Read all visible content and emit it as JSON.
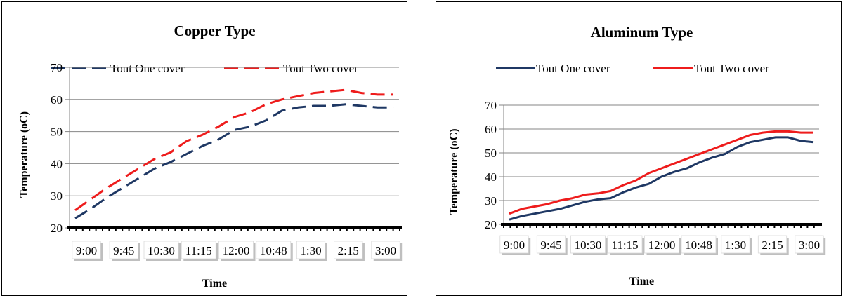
{
  "chart_data": [
    {
      "type": "line",
      "title": "Copper Type",
      "xlabel": "Time",
      "ylabel": "Temperature (oC)",
      "ylim": [
        20,
        70
      ],
      "yticks": [
        20,
        30,
        40,
        50,
        60,
        70
      ],
      "x_tick_labels": [
        "9:00",
        "9:45",
        "10:30",
        "11:15",
        "12:00",
        "10:48",
        "1:30",
        "2:15",
        "3:00"
      ],
      "grid": true,
      "legend_position": "top",
      "series": [
        {
          "name": "Tout One cover",
          "color": "#1f3864",
          "dash": "dashed",
          "values": [
            23,
            26,
            29.5,
            32.5,
            35.5,
            38.5,
            40.5,
            43,
            45.5,
            47.5,
            50.5,
            51.5,
            53.5,
            56.5,
            57.5,
            58,
            58,
            58.5,
            58,
            57.5,
            57.5
          ]
        },
        {
          "name": "Tout Two cover",
          "color": "#ee1c1c",
          "dash": "dashed",
          "values": [
            25.5,
            29,
            32.5,
            35.5,
            38.5,
            41.5,
            43.5,
            47,
            49,
            51.5,
            54.5,
            56,
            58.5,
            60,
            61,
            62,
            62.5,
            63,
            62,
            61.5,
            61.5
          ]
        }
      ]
    },
    {
      "type": "line",
      "title": "Aluminum Type",
      "xlabel": "Time",
      "ylabel": "Temperature (oC)",
      "ylim": [
        20,
        70
      ],
      "yticks": [
        20,
        30,
        40,
        50,
        60,
        70
      ],
      "x_tick_labels": [
        "9:00",
        "9:45",
        "10:30",
        "11:15",
        "12:00",
        "10:48",
        "1:30",
        "2:15",
        "3:00"
      ],
      "grid": true,
      "legend_position": "top",
      "series": [
        {
          "name": "Tout One cover",
          "color": "#1f3864",
          "dash": "solid",
          "values": [
            22,
            23.5,
            24.5,
            25.5,
            26.5,
            28,
            29.5,
            30.5,
            31,
            33.5,
            35.5,
            37,
            40,
            42,
            43.5,
            46,
            48,
            49.5,
            52.5,
            54.5,
            55.5,
            56.5,
            56.5,
            55,
            54.5
          ]
        },
        {
          "name": "Tout Two cover",
          "color": "#ee1c1c",
          "dash": "solid",
          "values": [
            24.5,
            26.5,
            27.5,
            28.5,
            30,
            31,
            32.5,
            33,
            34,
            36.5,
            38.5,
            41.5,
            43.5,
            45.5,
            47.5,
            49.5,
            51.5,
            53.5,
            55.5,
            57.5,
            58.5,
            59,
            59,
            58.5,
            58.5
          ]
        }
      ]
    }
  ]
}
